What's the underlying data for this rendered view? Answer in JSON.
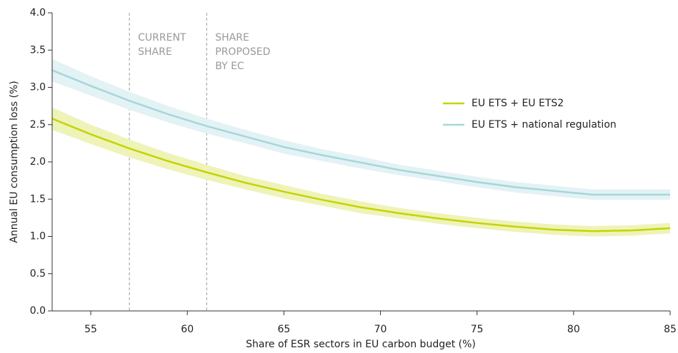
{
  "chart_data": {
    "type": "line",
    "x_label": "Share of ESR sectors in EU carbon budget (%)",
    "y_label": "Annual EU consumption loss (%)",
    "x": [
      53,
      55,
      57,
      59,
      61,
      63,
      65,
      67,
      69,
      71,
      73,
      75,
      77,
      79,
      81,
      83,
      85
    ],
    "series": [
      {
        "name": "EU ETS + EU ETS2",
        "color": "#c5d300",
        "band_color": "#eef3b8",
        "values": [
          2.58,
          2.37,
          2.18,
          2.01,
          1.86,
          1.72,
          1.6,
          1.49,
          1.39,
          1.31,
          1.24,
          1.18,
          1.13,
          1.09,
          1.07,
          1.08,
          1.11
        ],
        "upper": [
          2.73,
          2.5,
          2.3,
          2.12,
          1.96,
          1.81,
          1.69,
          1.57,
          1.47,
          1.38,
          1.31,
          1.25,
          1.2,
          1.16,
          1.14,
          1.15,
          1.18
        ],
        "lower": [
          2.43,
          2.24,
          2.06,
          1.9,
          1.76,
          1.63,
          1.51,
          1.41,
          1.31,
          1.24,
          1.17,
          1.11,
          1.06,
          1.02,
          1.0,
          1.01,
          1.04
        ]
      },
      {
        "name": "EU ETS + national regulation",
        "color": "#a6d6da",
        "band_color": "#e3f2f4",
        "values": [
          3.23,
          3.02,
          2.82,
          2.64,
          2.48,
          2.34,
          2.2,
          2.09,
          1.99,
          1.89,
          1.81,
          1.73,
          1.66,
          1.61,
          1.56,
          1.56,
          1.56
        ],
        "upper": [
          3.38,
          3.15,
          2.94,
          2.75,
          2.58,
          2.43,
          2.29,
          2.17,
          2.07,
          1.96,
          1.88,
          1.8,
          1.73,
          1.68,
          1.63,
          1.63,
          1.63
        ],
        "lower": [
          3.08,
          2.89,
          2.7,
          2.53,
          2.38,
          2.25,
          2.11,
          2.01,
          1.91,
          1.82,
          1.74,
          1.66,
          1.59,
          1.54,
          1.49,
          1.49,
          1.49
        ]
      }
    ],
    "annotations": [
      {
        "x": 57,
        "lines": [
          "CURRENT",
          "SHARE"
        ]
      },
      {
        "x": 61,
        "lines": [
          "SHARE",
          "PROPOSED",
          "BY EC"
        ]
      }
    ],
    "xlim": [
      53,
      85
    ],
    "xticks": [
      55,
      60,
      65,
      70,
      75,
      80,
      85
    ],
    "ylim": [
      0,
      4
    ],
    "yticks": [
      {
        "value": 0,
        "label": "0.0"
      },
      {
        "value": 0.5,
        "label": "0.5"
      },
      {
        "value": 1,
        "label": "1.0"
      },
      {
        "value": 1.5,
        "label": "1.5"
      },
      {
        "value": 2,
        "label": "2.0"
      },
      {
        "value": 2.5,
        "label": "2.5"
      },
      {
        "value": 3,
        "label": "3.0"
      },
      {
        "value": 3.5,
        "label": "3.5"
      },
      {
        "value": 4,
        "label": "4.0"
      }
    ],
    "legend": "right"
  }
}
